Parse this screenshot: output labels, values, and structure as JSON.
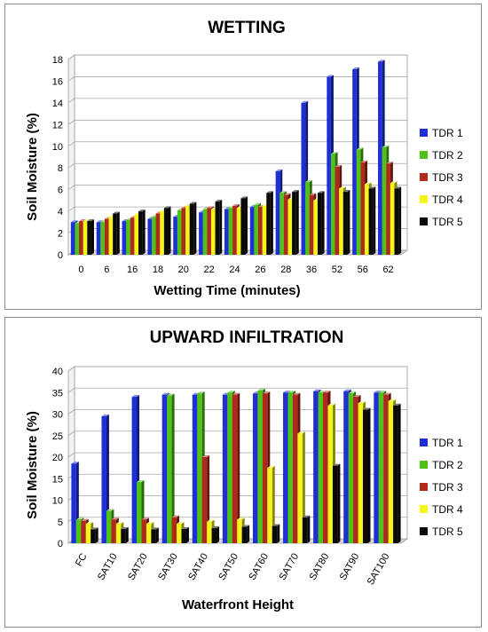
{
  "chart_data": [
    {
      "type": "bar",
      "title": "WETTING",
      "xlabel": "Wetting Time (minutes)",
      "ylabel": "Soil Moisture (%)",
      "ylim": [
        0,
        18
      ],
      "yticks": [
        0,
        2,
        4,
        6,
        8,
        10,
        12,
        14,
        16,
        18
      ],
      "categories": [
        "0",
        "6",
        "16",
        "18",
        "20",
        "22",
        "24",
        "26",
        "28",
        "36",
        "52",
        "56",
        "62"
      ],
      "grid": true,
      "legend_position": "right",
      "series": [
        {
          "name": "TDR 1",
          "color": "#1f2fd6",
          "values": [
            3.0,
            3.0,
            3.1,
            3.3,
            3.5,
            3.9,
            4.2,
            4.4,
            7.7,
            14.0,
            16.4,
            17.1,
            17.8
          ]
        },
        {
          "name": "TDR 2",
          "color": "#4fc21a",
          "values": [
            2.9,
            3.0,
            3.2,
            3.5,
            4.1,
            4.2,
            4.3,
            4.6,
            5.7,
            6.7,
            9.3,
            9.7,
            9.9
          ]
        },
        {
          "name": "TDR 3",
          "color": "#b02a1c",
          "values": [
            3.1,
            3.3,
            3.4,
            3.8,
            4.3,
            4.3,
            4.5,
            4.4,
            5.5,
            5.5,
            8.1,
            8.5,
            8.4
          ]
        },
        {
          "name": "TDR 4",
          "color": "#f5f51c",
          "values": [
            3.1,
            3.5,
            3.7,
            4.0,
            4.5,
            4.2,
            4.3,
            4.5,
            5.1,
            5.0,
            6.1,
            6.5,
            6.6
          ]
        },
        {
          "name": "TDR 5",
          "color": "#0a0a0a",
          "values": [
            3.1,
            3.8,
            4.0,
            4.3,
            4.7,
            4.9,
            5.2,
            5.7,
            5.8,
            5.7,
            5.8,
            6.1,
            6.1
          ]
        }
      ]
    },
    {
      "type": "bar",
      "title": "UPWARD INFILTRATION",
      "xlabel": "Waterfront Height",
      "ylabel": "Soil Moisture (%)",
      "ylim": [
        0,
        40
      ],
      "yticks": [
        0,
        5,
        10,
        15,
        20,
        25,
        30,
        35,
        40
      ],
      "categories": [
        "FC",
        "SAT10",
        "SAT20",
        "SAT30",
        "SAT40",
        "SAT50",
        "SAT60",
        "SAT70",
        "SAT80",
        "SAT90",
        "SAT100"
      ],
      "grid": true,
      "legend_position": "right",
      "series": [
        {
          "name": "TDR 1",
          "color": "#1f2fd6",
          "values": [
            18.5,
            29.5,
            34.0,
            34.5,
            34.5,
            34.5,
            34.8,
            35.0,
            35.3,
            35.3,
            35.0
          ]
        },
        {
          "name": "TDR 2",
          "color": "#4fc21a",
          "values": [
            5.5,
            7.5,
            14.2,
            34.3,
            34.8,
            35.0,
            35.5,
            35.0,
            35.0,
            34.8,
            35.0
          ]
        },
        {
          "name": "TDR 3",
          "color": "#b02a1c",
          "values": [
            5.2,
            5.5,
            5.5,
            6.0,
            20.0,
            34.5,
            34.8,
            34.5,
            35.0,
            34.0,
            34.5
          ]
        },
        {
          "name": "TDR 4",
          "color": "#f5f51c",
          "values": [
            4.5,
            4.5,
            4.5,
            4.5,
            5.0,
            5.5,
            17.5,
            25.5,
            32.0,
            32.5,
            33.0
          ]
        },
        {
          "name": "TDR 5",
          "color": "#0a0a0a",
          "values": [
            3.2,
            3.3,
            3.2,
            3.3,
            3.5,
            3.8,
            4.0,
            6.0,
            18.0,
            31.0,
            32.0
          ]
        }
      ]
    }
  ]
}
